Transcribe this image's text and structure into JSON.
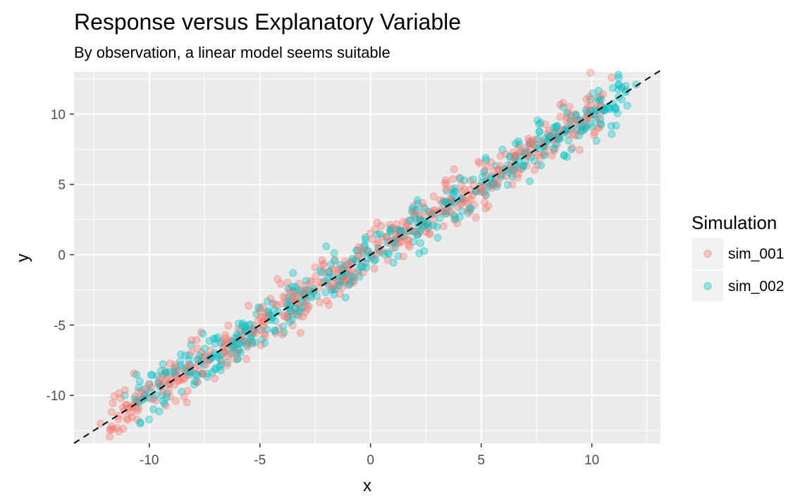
{
  "chart_data": {
    "type": "scatter",
    "title": "Response versus Explanatory Variable",
    "subtitle": "By observation, a linear model seems suitable",
    "xlabel": "x",
    "ylabel": "y",
    "xlim": [
      -13.4,
      13.1
    ],
    "ylim": [
      -13.4,
      13.0
    ],
    "x_ticks": [
      -10,
      -5,
      0,
      5,
      10
    ],
    "x_tick_labels": [
      "-10",
      "-5",
      "0",
      "5",
      "10"
    ],
    "y_ticks": [
      -10,
      -5,
      0,
      5,
      10
    ],
    "y_tick_labels": [
      "-10",
      "-5",
      "0",
      "5",
      "10"
    ],
    "grid": true,
    "legend": {
      "title": "Simulation",
      "position": "right"
    },
    "reference_line": {
      "style": "dashed",
      "color": "#000000",
      "slope": 1,
      "intercept": 0
    },
    "point_opacity": 0.35,
    "series": [
      {
        "name": "sim_001",
        "color": "#F8766D",
        "generator": {
          "n": 500,
          "x_range": [
            -12.2,
            10.9
          ],
          "slope": 1.0,
          "intercept": 0.0,
          "noise_sd": 0.8,
          "seed": 7
        },
        "x": [
          -12.2,
          -11.7,
          10.9,
          10.5,
          10.2,
          8.7,
          7.5,
          3.4,
          2.6,
          0.3,
          -2.9,
          -8.3
        ],
        "y": [
          -12.0,
          -12.2,
          12.6,
          11.4,
          10.9,
          10.8,
          8.2,
          5.3,
          2.8,
          2.3,
          -2.7,
          -10.5
        ]
      },
      {
        "name": "sim_002",
        "color": "#00BFC4",
        "generator": {
          "n": 500,
          "x_range": [
            -11.1,
            12.0
          ],
          "slope": 1.0,
          "intercept": 0.0,
          "noise_sd": 0.8,
          "seed": 13
        },
        "x": [
          -11.1,
          -10.4,
          12.0,
          11.6,
          10.2,
          8.3,
          5.2,
          2.2,
          -2.0,
          -3.5,
          -6.0,
          -9.8
        ],
        "y": [
          -10.0,
          -12.0,
          12.1,
          10.6,
          8.1,
          8.7,
          6.9,
          0.1,
          0.6,
          -1.3,
          -7.4,
          -10.2
        ]
      }
    ]
  }
}
